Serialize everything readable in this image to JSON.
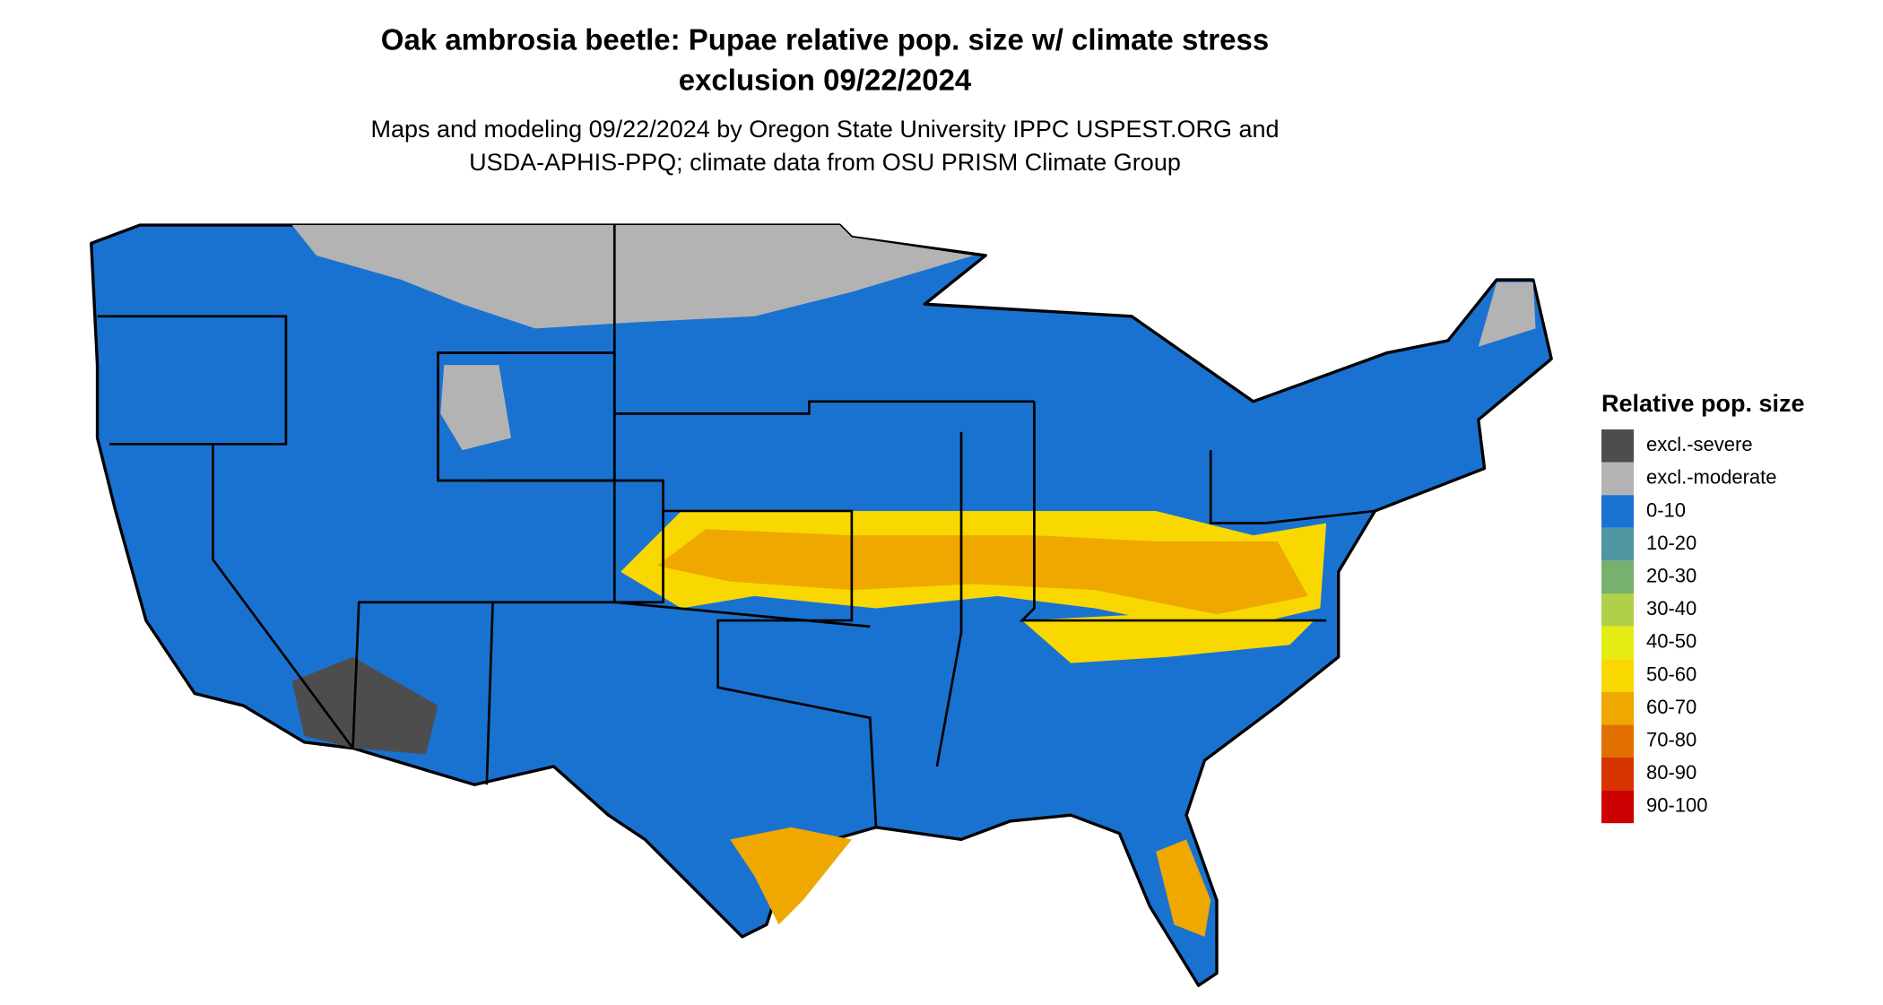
{
  "title": [
    "Oak ambrosia beetle: Pupae relative pop. size w/ climate stress",
    "exclusion 09/22/2024"
  ],
  "subtitle": [
    "Maps and modeling 09/22/2024 by Oregon State University IPPC USPEST.ORG and",
    "USDA-APHIS-PPQ; climate data from OSU PRISM Climate Group"
  ],
  "legend": {
    "title": "Relative pop. size",
    "items": [
      {
        "label": "excl.-severe",
        "color": "#4d4d4d"
      },
      {
        "label": "excl.-moderate",
        "color": "#b3b3b3"
      },
      {
        "label": "0-10",
        "color": "#1a72d0"
      },
      {
        "label": "10-20",
        "color": "#4f96a0"
      },
      {
        "label": "20-30",
        "color": "#78b06e"
      },
      {
        "label": "30-40",
        "color": "#b0d04a"
      },
      {
        "label": "40-50",
        "color": "#e5ec14"
      },
      {
        "label": "50-60",
        "color": "#f8d800"
      },
      {
        "label": "60-70",
        "color": "#eea800"
      },
      {
        "label": "70-80",
        "color": "#e27000"
      },
      {
        "label": "80-90",
        "color": "#d83400"
      },
      {
        "label": "90-100",
        "color": "#cc0000"
      }
    ]
  }
}
